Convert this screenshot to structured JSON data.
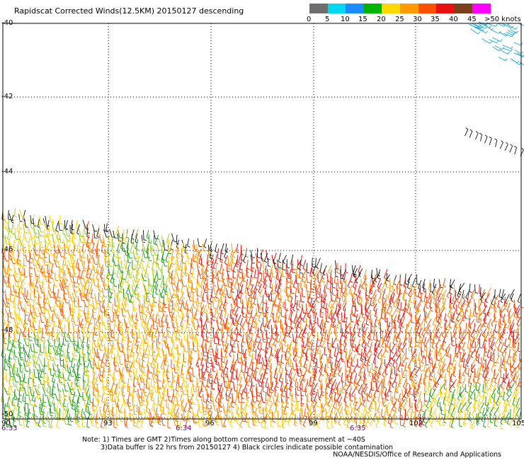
{
  "title": "Rapidscat Corrected Winds(12.5KM) 20150127 descending",
  "legend": {
    "labels": [
      "0",
      "5",
      "10",
      "15",
      "20",
      "25",
      "30",
      "35",
      "40",
      "45",
      ">50 knots"
    ],
    "colors": [
      "#6e6e6e",
      "#00d8f0",
      "#1a8cff",
      "#00b400",
      "#ffd800",
      "#ff9a00",
      "#ff5000",
      "#e81010",
      "#7b3f1a",
      "#ff00ff",
      "#7d00b4"
    ]
  },
  "latitude_labels": [
    "-40",
    "-42",
    "-44",
    "-46",
    "-48",
    "-50"
  ],
  "longitude_labels": [
    "90",
    "93",
    "96",
    "99",
    "102",
    "105"
  ],
  "time_labels": [
    "6:33",
    "6:34",
    "6:35"
  ],
  "notes": {
    "line1": "Note: 1) Times are GMT 2)Times along bottom correspond to measurement at ~40S",
    "line2": "3)Data buffer is 22 hrs from 20150127 4) Black circles indicate possible contamination",
    "credit": "NOAA/NESDIS/Office of Research and Applications"
  }
}
